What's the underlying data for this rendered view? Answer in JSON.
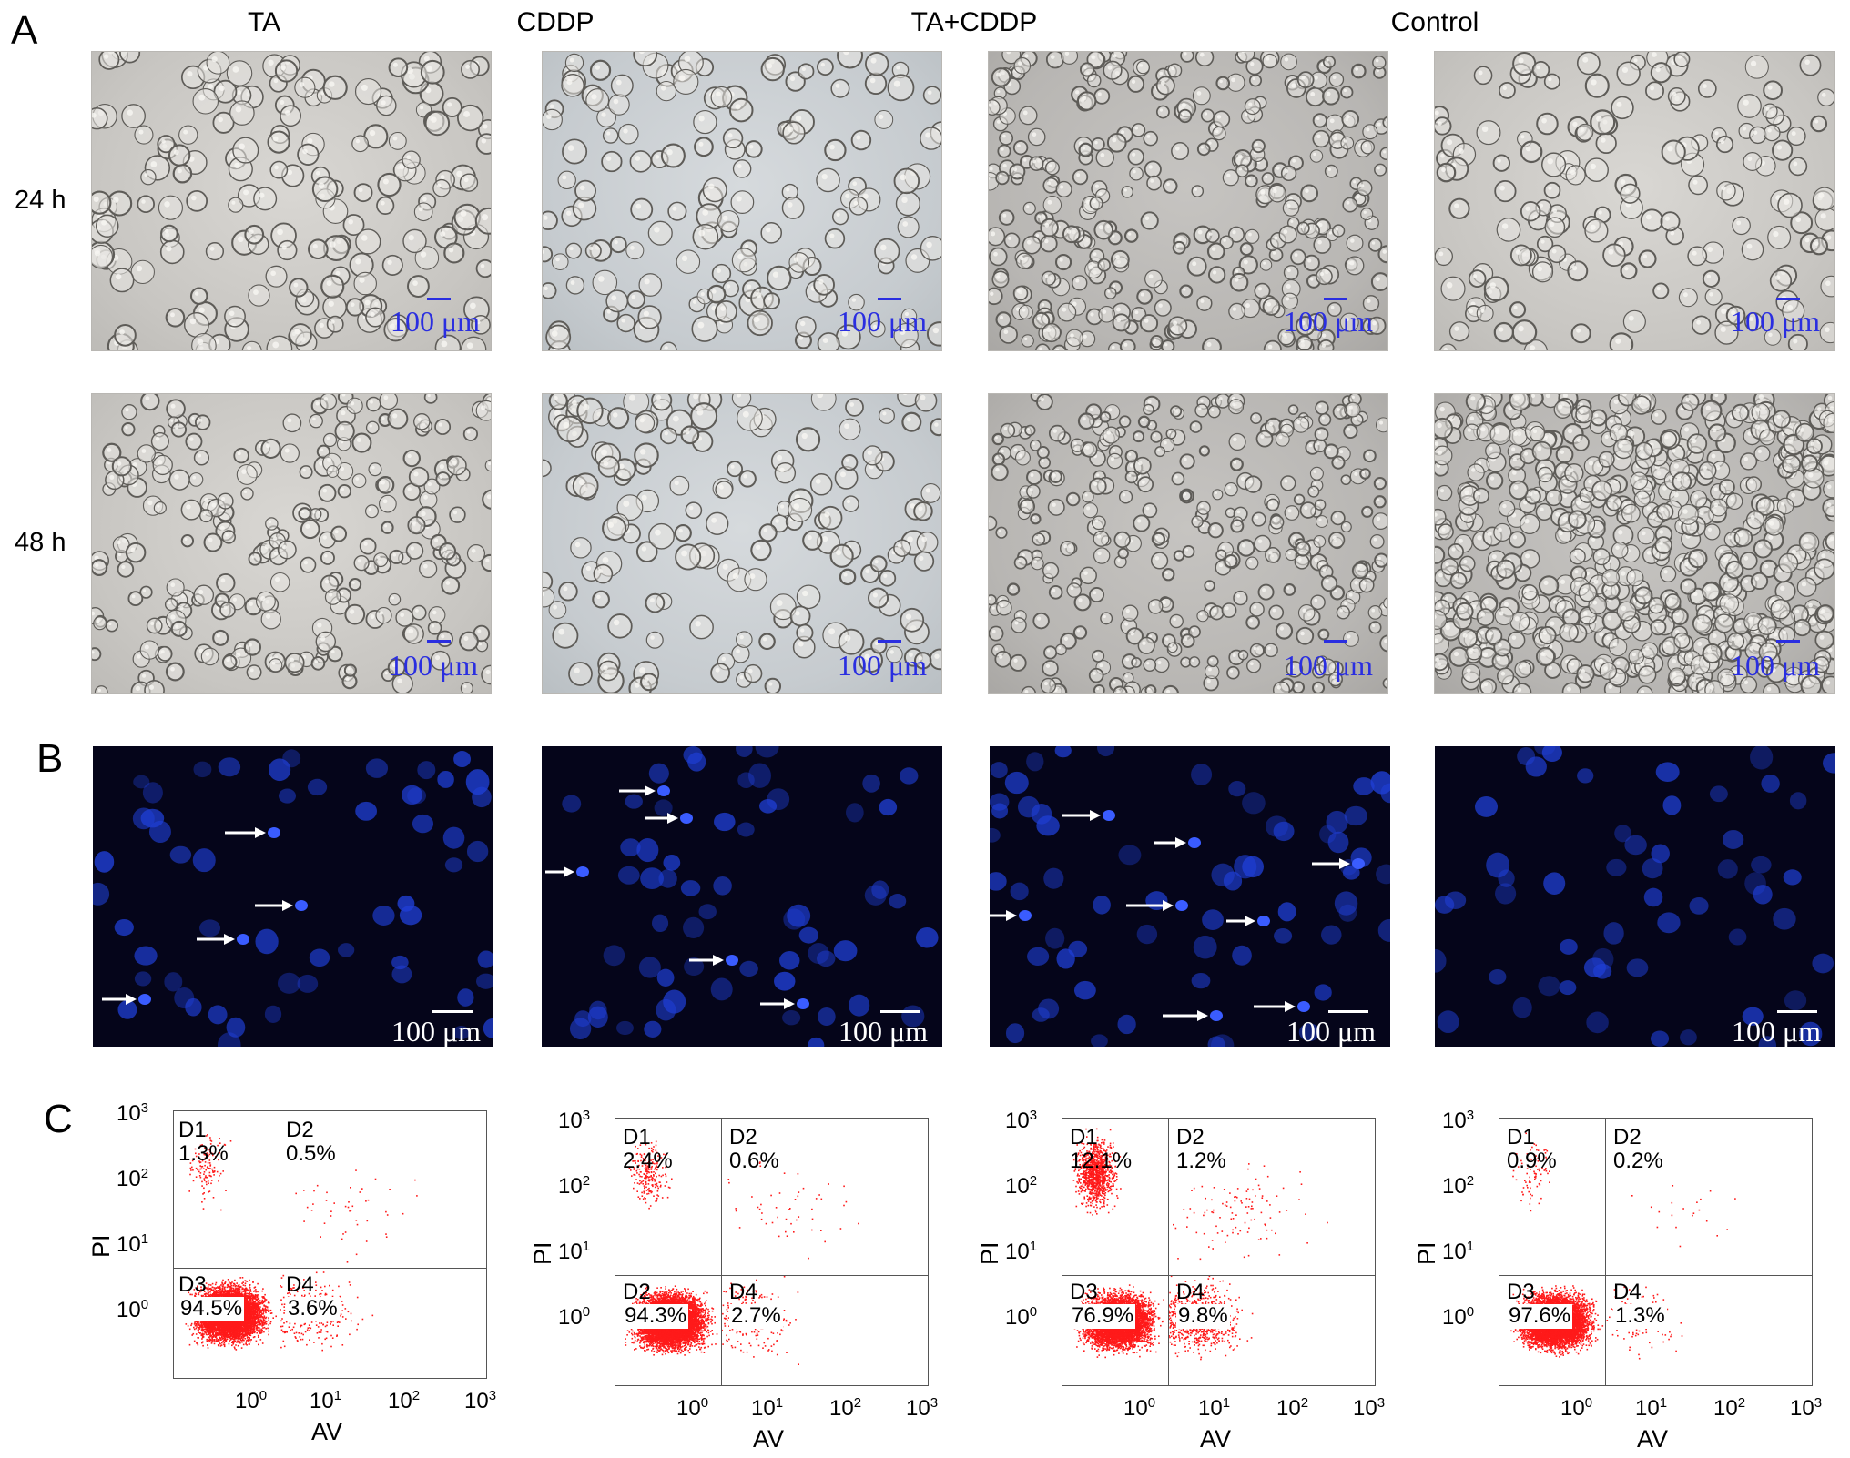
{
  "panels": {
    "a": "A",
    "b": "B",
    "c": "C"
  },
  "columns": [
    "TA",
    "CDDP",
    "TA+CDDP",
    "Control"
  ],
  "rows": [
    "24 h",
    "48 h"
  ],
  "scale_bar": "100 μm",
  "flow": {
    "x_axis_label": "AV",
    "y_axis_label": "PI",
    "x_ticks": [
      "10",
      "10",
      "10",
      "10"
    ],
    "x_tick_exponents": [
      "0",
      "1",
      "2",
      "3"
    ],
    "y_ticks": [
      "10",
      "10",
      "10",
      "10"
    ],
    "y_tick_exponents": [
      "3",
      "2",
      "1",
      "0"
    ],
    "plots": [
      {
        "q1": "D1",
        "q1_pct": "1.3%",
        "q2": "D2",
        "q2_pct": "0.5%",
        "q3": "D3",
        "q3_pct": "94.5%",
        "q4": "D4",
        "q4_pct": "3.6%"
      },
      {
        "q1": "D1",
        "q1_pct": "2.4%",
        "q2": "D2",
        "q2_pct": "0.6%",
        "q3": "D2",
        "q3_pct": "94.3%",
        "q4": "D4",
        "q4_pct": "2.7%"
      },
      {
        "q1": "D1",
        "q1_pct": "12.1%",
        "q2": "D2",
        "q2_pct": "1.2%",
        "q3": "D3",
        "q3_pct": "76.9%",
        "q4": "D4",
        "q4_pct": "9.8%"
      },
      {
        "q1": "D1",
        "q1_pct": "0.9%",
        "q2": "D2",
        "q2_pct": "0.2%",
        "q3": "D3",
        "q3_pct": "97.6%",
        "q4": "D4",
        "q4_pct": "1.3%"
      }
    ]
  },
  "chart_data": [
    {
      "type": "scatter",
      "title": "TA",
      "xlabel": "AV",
      "ylabel": "PI",
      "x_scale": "log",
      "y_scale": "log",
      "xlim": [
        0.1,
        1000
      ],
      "ylim": [
        0.1,
        1000
      ],
      "quadrants": [
        {
          "name": "D1",
          "percent": 1.3
        },
        {
          "name": "D2",
          "percent": 0.5
        },
        {
          "name": "D3",
          "percent": 94.5
        },
        {
          "name": "D4",
          "percent": 3.6
        }
      ]
    },
    {
      "type": "scatter",
      "title": "CDDP",
      "xlabel": "AV",
      "ylabel": "PI",
      "x_scale": "log",
      "y_scale": "log",
      "xlim": [
        0.1,
        1000
      ],
      "ylim": [
        0.1,
        1000
      ],
      "quadrants": [
        {
          "name": "D1",
          "percent": 2.4
        },
        {
          "name": "D2",
          "percent": 0.6
        },
        {
          "name": "D2",
          "percent": 94.3
        },
        {
          "name": "D4",
          "percent": 2.7
        }
      ]
    },
    {
      "type": "scatter",
      "title": "TA+CDDP",
      "xlabel": "AV",
      "ylabel": "PI",
      "x_scale": "log",
      "y_scale": "log",
      "xlim": [
        0.1,
        1000
      ],
      "ylim": [
        0.1,
        1000
      ],
      "quadrants": [
        {
          "name": "D1",
          "percent": 12.1
        },
        {
          "name": "D2",
          "percent": 1.2
        },
        {
          "name": "D3",
          "percent": 76.9
        },
        {
          "name": "D4",
          "percent": 9.8
        }
      ]
    },
    {
      "type": "scatter",
      "title": "Control",
      "xlabel": "AV",
      "ylabel": "PI",
      "x_scale": "log",
      "y_scale": "log",
      "xlim": [
        0.1,
        1000
      ],
      "ylim": [
        0.1,
        1000
      ],
      "quadrants": [
        {
          "name": "D1",
          "percent": 0.9
        },
        {
          "name": "D2",
          "percent": 0.2
        },
        {
          "name": "D3",
          "percent": 97.6
        },
        {
          "name": "D4",
          "percent": 1.3
        }
      ]
    }
  ],
  "colors": {
    "scale_blue": "#2a2ee0",
    "dots": "#ff1a1a",
    "nuclei": "#1f3fd6"
  }
}
